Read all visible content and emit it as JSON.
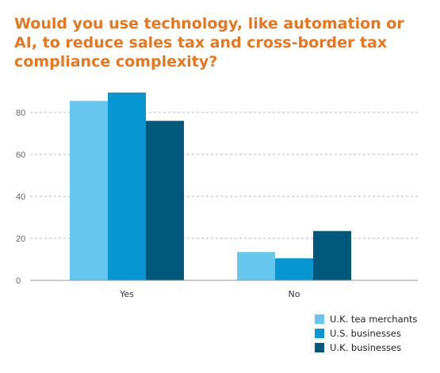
{
  "chart_data": {
    "type": "bar",
    "title": "Would you use technology, like automation or AI, to reduce sales tax and cross-border tax compliance complexity?",
    "categories": [
      "Yes",
      "No"
    ],
    "series": [
      {
        "name": "U.K. tea merchants",
        "values": [
          85.5,
          13.5
        ],
        "color": "#67c6ee"
      },
      {
        "name": "U.S. businesses",
        "values": [
          89.5,
          10.5
        ],
        "color": "#0796d2"
      },
      {
        "name": "U.K. businesses",
        "values": [
          76,
          23.5
        ],
        "color": "#02587a"
      }
    ],
    "ylim": [
      0,
      80
    ],
    "yticks": [
      0,
      20,
      40,
      60,
      80
    ],
    "grid": true,
    "legend_position": "bottom-right",
    "xlabel": "",
    "ylabel": ""
  },
  "colors": {
    "title": "#e8761e",
    "grid": "#bbbbbb",
    "axis": "#999999"
  }
}
